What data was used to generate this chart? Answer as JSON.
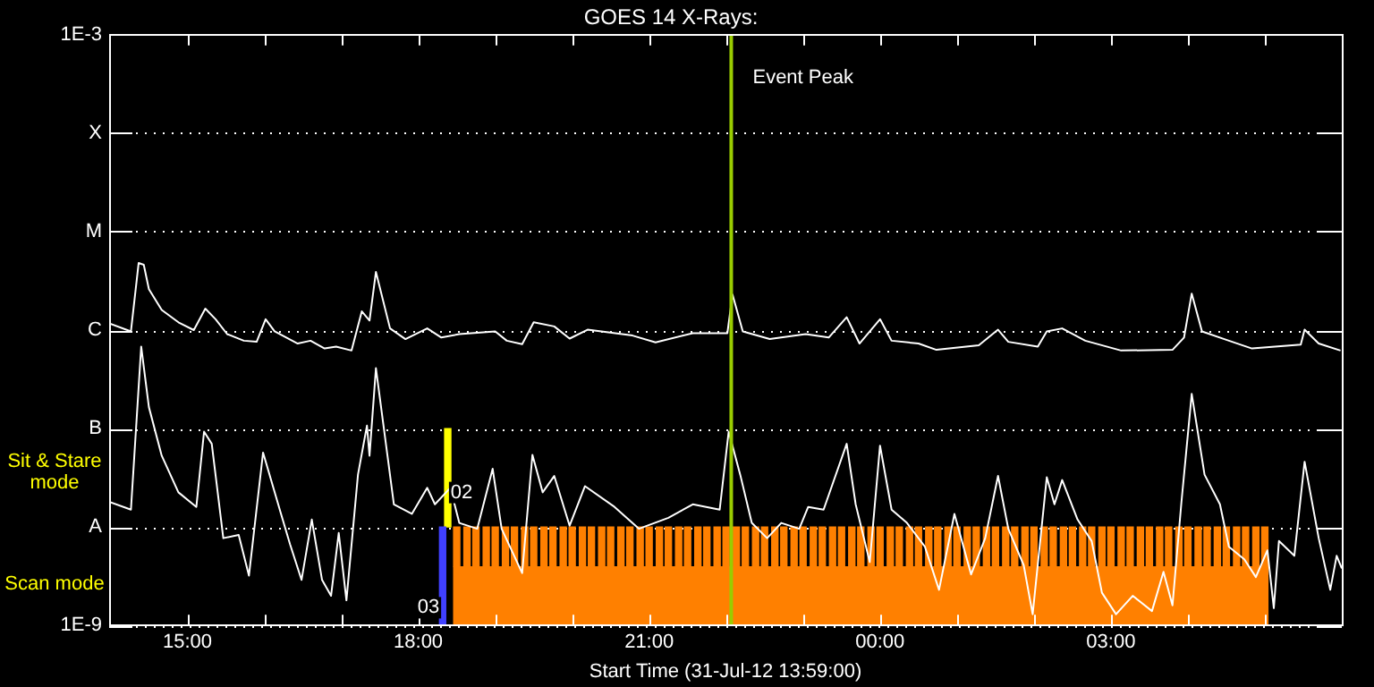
{
  "chart_data": {
    "type": "line",
    "title": "GOES 14 X-Rays:",
    "xlabel": "Start Time (31-Jul-12 13:59:00)",
    "xlim": [
      "--07-31T13:59",
      "--08-01T06:00"
    ],
    "xticks": [
      {
        "value": "--07-31T15:00",
        "label": "15:00"
      },
      {
        "value": "--07-31T16:00",
        "label": null
      },
      {
        "value": "--07-31T17:00",
        "label": null
      },
      {
        "value": "--07-31T18:00",
        "label": "18:00"
      },
      {
        "value": "--07-31T19:00",
        "label": null
      },
      {
        "value": "--07-31T20:00",
        "label": null
      },
      {
        "value": "--07-31T21:00",
        "label": "21:00"
      },
      {
        "value": "--07-31T22:00",
        "label": null
      },
      {
        "value": "--07-31T23:00",
        "label": null
      },
      {
        "value": "--08-01T00:00",
        "label": "00:00"
      },
      {
        "value": "--08-01T01:00",
        "label": null
      },
      {
        "value": "--08-01T02:00",
        "label": null
      },
      {
        "value": "--08-01T03:00",
        "label": "03:00"
      },
      {
        "value": "--08-01T04:00",
        "label": null
      },
      {
        "value": "--08-01T05:00",
        "label": null
      }
    ],
    "ylim": [
      1e-09,
      0.001
    ],
    "yticks": [
      {
        "value": 1e-09,
        "label": "1E-9"
      },
      {
        "value": 1e-08,
        "label": "A"
      },
      {
        "value": 1e-07,
        "label": "B"
      },
      {
        "value": 1e-06,
        "label": "C"
      },
      {
        "value": 1e-05,
        "label": "M"
      },
      {
        "value": 0.0001,
        "label": "X"
      },
      {
        "value": 0.001,
        "label": "1E-3"
      }
    ],
    "log": "y",
    "grid": "y",
    "legend": false,
    "tick_labels": "xy",
    "series": [
      {
        "type": "area",
        "color": "#ff8000",
        "x": [
          "--07-31T18:27",
          "--08-01T05:03"
        ],
        "values": [
          4e-09,
          4e-09
        ]
      },
      {
        "type": "bar",
        "color": "#ff8000",
        "x": [
          "--07-31T18:30",
          "--07-31T18:38",
          "--07-31T18:45",
          "--07-31T18:53",
          "--07-31T19:00",
          "--07-31T19:08",
          "--07-31T19:15",
          "--07-31T19:23",
          "--07-31T19:30",
          "--07-31T19:38",
          "--07-31T19:45",
          "--07-31T19:53",
          "--07-31T20:00",
          "--07-31T20:08",
          "--07-31T20:15",
          "--07-31T20:23",
          "--07-31T20:30",
          "--07-31T20:38",
          "--07-31T20:45",
          "--07-31T20:53",
          "--07-31T21:00",
          "--07-31T21:08",
          "--07-31T21:15",
          "--07-31T21:23",
          "--07-31T21:30",
          "--07-31T21:38",
          "--07-31T21:45",
          "--07-31T21:53",
          "--07-31T22:00",
          "--07-31T22:08",
          "--07-31T22:15",
          "--07-31T22:23",
          "--07-31T22:30",
          "--07-31T22:38",
          "--07-31T22:45",
          "--07-31T22:53",
          "--07-31T23:00",
          "--07-31T23:08",
          "--07-31T23:15",
          "--07-31T23:23",
          "--07-31T23:30",
          "--07-31T23:38",
          "--07-31T23:45",
          "--07-31T23:53",
          "--08-01T00:00",
          "--08-01T00:08",
          "--08-01T00:15",
          "--08-01T00:23",
          "--08-01T00:30",
          "--08-01T00:38",
          "--08-01T00:45",
          "--08-01T00:53",
          "--08-01T01:00",
          "--08-01T01:08",
          "--08-01T01:15",
          "--08-01T01:23",
          "--08-01T01:30",
          "--08-01T01:38",
          "--08-01T01:45",
          "--08-01T01:53",
          "--08-01T02:00",
          "--08-01T02:08",
          "--08-01T02:15",
          "--08-01T02:23",
          "--08-01T02:30",
          "--08-01T02:38",
          "--08-01T02:45",
          "--08-01T02:53",
          "--08-01T03:00",
          "--08-01T03:08",
          "--08-01T03:15",
          "--08-01T03:23",
          "--08-01T03:30",
          "--08-01T03:38",
          "--08-01T03:45",
          "--08-01T03:53",
          "--08-01T04:00",
          "--08-01T04:08",
          "--08-01T04:15",
          "--08-01T04:23",
          "--08-01T04:30",
          "--08-01T04:38",
          "--08-01T04:45",
          "--08-01T04:53",
          "--08-01T05:00"
        ],
        "base": [
          4e-09,
          4e-09,
          4e-09,
          4e-09,
          4e-09,
          4e-09,
          4e-09,
          4e-09,
          4e-09,
          4e-09,
          4e-09,
          4e-09,
          4e-09,
          4e-09,
          4e-09,
          4e-09,
          4e-09,
          4e-09,
          4e-09,
          4e-09,
          4e-09,
          4e-09,
          4e-09,
          4e-09,
          4e-09,
          4e-09,
          4e-09,
          4e-09,
          4e-09,
          4e-09,
          4e-09,
          4e-09,
          4e-09,
          4e-09,
          4e-09,
          4e-09,
          4e-09,
          4e-09,
          4e-09,
          4e-09,
          4e-09,
          4e-09,
          4e-09,
          4e-09,
          4e-09,
          4e-09,
          4e-09,
          4e-09,
          4e-09,
          4e-09,
          4e-09,
          4e-09,
          4e-09,
          4e-09,
          4e-09,
          4e-09,
          4e-09,
          4e-09,
          4e-09,
          4e-09,
          4e-09,
          4e-09,
          4e-09,
          4e-09,
          4e-09,
          4e-09,
          4e-09,
          4e-09,
          4e-09,
          4e-09,
          4e-09,
          4e-09,
          4e-09,
          4e-09,
          4e-09,
          4e-09,
          4e-09,
          4e-09,
          4e-09,
          4e-09,
          4e-09,
          4e-09,
          4e-09,
          4e-09,
          4e-09
        ],
        "values": [
          6e-09,
          6e-09,
          6e-09,
          6e-09,
          6e-09,
          6e-09,
          6e-09,
          6e-09,
          6e-09,
          6e-09,
          6e-09,
          6e-09,
          6e-09,
          6e-09,
          6e-09,
          6e-09,
          6e-09,
          6e-09,
          6e-09,
          6e-09,
          6e-09,
          6e-09,
          6e-09,
          6e-09,
          6e-09,
          6e-09,
          6e-09,
          6e-09,
          6e-09,
          6e-09,
          6e-09,
          6e-09,
          6e-09,
          6e-09,
          6e-09,
          6e-09,
          6e-09,
          6e-09,
          6e-09,
          6e-09,
          6e-09,
          6e-09,
          6e-09,
          6e-09,
          6e-09,
          6e-09,
          6e-09,
          6e-09,
          6e-09,
          6e-09,
          6e-09,
          6e-09,
          6e-09,
          6e-09,
          6e-09,
          6e-09,
          6e-09,
          6e-09,
          6e-09,
          6e-09,
          6e-09,
          6e-09,
          6e-09,
          6e-09,
          6e-09,
          6e-09,
          6e-09,
          6e-09,
          6e-09,
          6e-09,
          6e-09,
          6e-09,
          6e-09,
          6e-09,
          6e-09,
          6e-09,
          6e-09,
          6e-09,
          6e-09,
          6e-09,
          6e-09,
          6e-09,
          6e-09,
          6e-09,
          6e-09
        ]
      },
      {
        "type": "bar",
        "color": "#4040ff",
        "x": [
          "--07-31T18:19"
        ],
        "base": [
          1e-09
        ],
        "values": [
          9e-09
        ]
      },
      {
        "type": "bar",
        "color": "#ffff00",
        "x": [
          "--07-31T18:23"
        ],
        "base": [
          1e-08
        ],
        "values": [
          9e-08
        ]
      },
      {
        "color": "#ffffff",
        "x": [
          "--07-31T13:59",
          "--07-31T14:16",
          "--07-31T14:22",
          "--07-31T14:26",
          "--07-31T14:30",
          "--07-31T14:40",
          "--07-31T14:53",
          "--07-31T15:05",
          "--07-31T15:14",
          "--07-31T15:22",
          "--07-31T15:31",
          "--07-31T15:44",
          "--07-31T15:54",
          "--07-31T16:01",
          "--07-31T16:08",
          "--07-31T16:26",
          "--07-31T16:36",
          "--07-31T16:47",
          "--07-31T16:56",
          "--07-31T17:08",
          "--07-31T17:16",
          "--07-31T17:22",
          "--07-31T17:27",
          "--07-31T17:38",
          "--07-31T17:50",
          "--07-31T18:07",
          "--07-31T18:18",
          "--07-31T18:32",
          "--07-31T19:00",
          "--07-31T19:09",
          "--07-31T19:21",
          "--07-31T19:30",
          "--07-31T19:46",
          "--07-31T19:58",
          "--07-31T20:12",
          "--07-31T20:47",
          "--07-31T21:05",
          "--07-31T21:34",
          "--07-31T22:01",
          "--07-31T22:05",
          "--07-31T22:13",
          "--07-31T22:34",
          "--07-31T23:02",
          "--07-31T23:20",
          "--07-31T23:34",
          "--07-31T23:44",
          "--08-01T00:00",
          "--08-01T00:09",
          "--08-01T00:30",
          "--08-01T00:44",
          "--08-01T01:17",
          "--08-01T01:32",
          "--08-01T01:40",
          "--08-01T02:03",
          "--08-01T02:10",
          "--08-01T02:22",
          "--08-01T02:40",
          "--08-01T03:08",
          "--08-01T03:48",
          "--08-01T03:57",
          "--08-01T04:03",
          "--08-01T04:11",
          "--08-01T04:32",
          "--08-01T04:50",
          "--08-01T05:28",
          "--08-01T05:31",
          "--08-01T05:42",
          "--08-01T05:59"
        ],
        "values": [
          1.17e-06,
          9.7e-07,
          4.8e-06,
          4.6e-06,
          2.6e-06,
          1.6e-06,
          1.2e-06,
          1e-06,
          1.65e-06,
          1.29e-06,
          9.1e-07,
          7.8e-07,
          7.6e-07,
          1.29e-06,
          9.7e-07,
          7.3e-07,
          7.8e-07,
          6.5e-07,
          6.8e-07,
          6.2e-07,
          1.55e-06,
          1.25e-06,
          3.9e-06,
          1.04e-06,
          8.1e-07,
          1.04e-06,
          8.4e-07,
          9.1e-07,
          9.7e-07,
          7.8e-07,
          7.2e-07,
          1.2e-06,
          1.09e-06,
          8.2e-07,
          1.01e-06,
          8.8e-07,
          7.5e-07,
          9.3e-07,
          9.3e-07,
          2.3e-06,
          9.7e-07,
          8.1e-07,
          9.1e-07,
          8.4e-07,
          1.35e-06,
          7.3e-07,
          1.29e-06,
          7.8e-07,
          7.3e-07,
          6.3e-07,
          7e-07,
          1.01e-06,
          7.6e-07,
          6.8e-07,
          9.7e-07,
          1.04e-06,
          7.8e-07,
          6.2e-07,
          6.3e-07,
          8.4e-07,
          2.35e-06,
          9.7e-07,
          7.8e-07,
          6.5e-07,
          7.1e-07,
          1.01e-06,
          7.3e-07,
          6.2e-07
        ]
      },
      {
        "color": "#ffffff",
        "x": [
          "--07-31T13:59",
          "--07-31T14:16",
          "--07-31T14:24",
          "--07-31T14:30",
          "--07-31T14:40",
          "--07-31T14:53",
          "--07-31T15:07",
          "--07-31T15:13",
          "--07-31T15:19",
          "--07-31T15:28",
          "--07-31T15:40",
          "--07-31T15:48",
          "--07-31T15:59",
          "--07-31T16:13",
          "--07-31T16:20",
          "--07-31T16:29",
          "--07-31T16:37",
          "--07-31T16:45",
          "--07-31T16:52",
          "--07-31T16:58",
          "--07-31T17:04",
          "--07-31T17:13",
          "--07-31T17:20",
          "--07-31T17:22",
          "--07-31T17:27",
          "--07-31T17:41",
          "--07-31T17:55",
          "--07-31T18:07",
          "--07-31T18:13",
          "--07-31T18:25",
          "--07-31T18:32",
          "--07-31T18:46",
          "--07-31T18:58",
          "--07-31T19:05",
          "--07-31T19:21",
          "--07-31T19:29",
          "--07-31T19:37",
          "--07-31T19:46",
          "--07-31T19:58",
          "--07-31T20:10",
          "--07-31T20:33",
          "--07-31T20:52",
          "--07-31T21:15",
          "--07-31T21:34",
          "--07-31T21:55",
          "--07-31T22:02",
          "--07-31T22:11",
          "--07-31T22:20",
          "--07-31T22:32",
          "--07-31T22:43",
          "--07-31T22:57",
          "--07-31T23:04",
          "--07-31T23:16",
          "--07-31T23:34",
          "--07-31T23:41",
          "--07-31T23:52",
          "--08-01T00:00",
          "--08-01T00:09",
          "--08-01T00:21",
          "--08-01T00:35",
          "--08-01T00:46",
          "--08-01T00:58",
          "--08-01T01:11",
          "--08-01T01:22",
          "--08-01T01:32",
          "--08-01T01:40",
          "--08-01T01:52",
          "--08-01T01:59",
          "--08-01T02:10",
          "--08-01T02:16",
          "--08-01T02:22",
          "--08-01T02:34",
          "--08-01T02:45",
          "--08-01T02:53",
          "--08-01T03:04",
          "--08-01T03:17",
          "--08-01T03:32",
          "--08-01T03:41",
          "--08-01T03:48",
          "--08-01T03:55",
          "--08-01T04:03",
          "--08-01T04:13",
          "--08-01T04:25",
          "--08-01T04:32",
          "--08-01T04:44",
          "--08-01T04:53",
          "--08-01T05:02",
          "--08-01T05:07",
          "--08-01T05:11",
          "--08-01T05:23",
          "--08-01T05:31",
          "--08-01T05:42",
          "--08-01T05:51",
          "--08-01T05:56",
          "--08-01T06:00"
        ],
        "values": [
          1.8e-08,
          1.5e-08,
          6.8e-07,
          1.65e-07,
          5.3e-08,
          2.25e-08,
          1.6e-08,
          9.3e-08,
          7e-08,
          7.7e-09,
          8.3e-09,
          3.2e-09,
          5.7e-08,
          1.36e-08,
          6.7e-09,
          2.9e-09,
          1.19e-08,
          2.9e-09,
          2e-09,
          8.7e-09,
          1.8e-09,
          3.4e-08,
          1.07e-07,
          5.3e-08,
          4.1e-07,
          1.7e-08,
          1.36e-08,
          2.5e-08,
          1.7e-08,
          2.5e-08,
          1.1e-08,
          9.6e-09,
          3.9e-08,
          9.6e-09,
          3.4e-09,
          5.4e-08,
          2.25e-08,
          3.3e-08,
          1.03e-08,
          2.6e-08,
          1.6e-08,
          9.6e-09,
          1.24e-08,
          1.7e-08,
          1.5e-08,
          9.3e-08,
          3.4e-08,
          1.1e-08,
          7.7e-09,
          1.1e-08,
          9.6e-09,
          1.6e-08,
          1.5e-08,
          7e-08,
          1.7e-08,
          4.4e-09,
          6.7e-08,
          1.5e-08,
          1.1e-08,
          6.3e-09,
          2.3e-09,
          1.36e-08,
          3.3e-09,
          7.7e-09,
          3.3e-08,
          9.6e-09,
          4.1e-09,
          1.3e-09,
          3.2e-08,
          1.7e-08,
          3e-08,
          1.19e-08,
          7.2e-09,
          2.15e-09,
          1.3e-09,
          2e-09,
          1.4e-09,
          3.5e-09,
          1.6e-09,
          1.8e-08,
          2.25e-07,
          3.4e-08,
          1.7e-08,
          6.3e-09,
          4.7e-09,
          3.1e-09,
          5.8e-09,
          1.5e-09,
          7.2e-09,
          5.1e-09,
          4.6e-08,
          7.7e-09,
          2.3e-09,
          5.1e-09,
          3.8e-09
        ]
      }
    ],
    "ref_lines": [
      {
        "axis": "x",
        "value": "--07-31T22:04",
        "label": "Event Peak",
        "color": "#99cc00"
      }
    ],
    "annotations": [
      "Sit & Stare mode",
      "Scan mode",
      "02",
      "03"
    ]
  }
}
